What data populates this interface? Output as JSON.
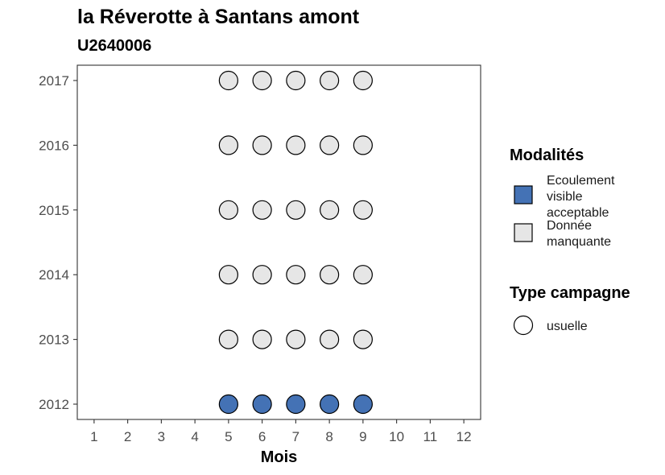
{
  "colors": {
    "ecoulement": "#4472b5",
    "donnee_manquante": "#e6e6e6",
    "usuelle": "#ffffff",
    "stroke": "#000000"
  },
  "chart_data": {
    "type": "scatter",
    "title": "la Réverotte à Santans amont",
    "subtitle": "U2640006",
    "xlabel": "Mois",
    "ylabel": "",
    "xlim": [
      0.5,
      12.5
    ],
    "x_ticks": [
      1,
      2,
      3,
      4,
      5,
      6,
      7,
      8,
      9,
      10,
      11,
      12
    ],
    "y_categories": [
      "2012",
      "2013",
      "2014",
      "2015",
      "2016",
      "2017"
    ],
    "grid": false,
    "legend_position": "right",
    "legends": [
      {
        "title": "Modalités",
        "entries": [
          {
            "key": "ecoulement",
            "lines": [
              "Ecoulement",
              "visible",
              "acceptable"
            ]
          },
          {
            "key": "donnee_manquante",
            "lines": [
              "Donnée",
              "manquante"
            ]
          }
        ]
      },
      {
        "title": "Type campagne",
        "entries": [
          {
            "key": "usuelle",
            "lines": [
              "usuelle"
            ]
          }
        ]
      }
    ],
    "points": [
      {
        "year": "2012",
        "month": 5,
        "modalite": "ecoulement"
      },
      {
        "year": "2012",
        "month": 6,
        "modalite": "ecoulement"
      },
      {
        "year": "2012",
        "month": 7,
        "modalite": "ecoulement"
      },
      {
        "year": "2012",
        "month": 8,
        "modalite": "ecoulement"
      },
      {
        "year": "2012",
        "month": 9,
        "modalite": "ecoulement"
      },
      {
        "year": "2013",
        "month": 5,
        "modalite": "donnee_manquante"
      },
      {
        "year": "2013",
        "month": 6,
        "modalite": "donnee_manquante"
      },
      {
        "year": "2013",
        "month": 7,
        "modalite": "donnee_manquante"
      },
      {
        "year": "2013",
        "month": 8,
        "modalite": "donnee_manquante"
      },
      {
        "year": "2013",
        "month": 9,
        "modalite": "donnee_manquante"
      },
      {
        "year": "2014",
        "month": 5,
        "modalite": "donnee_manquante"
      },
      {
        "year": "2014",
        "month": 6,
        "modalite": "donnee_manquante"
      },
      {
        "year": "2014",
        "month": 7,
        "modalite": "donnee_manquante"
      },
      {
        "year": "2014",
        "month": 8,
        "modalite": "donnee_manquante"
      },
      {
        "year": "2014",
        "month": 9,
        "modalite": "donnee_manquante"
      },
      {
        "year": "2015",
        "month": 5,
        "modalite": "donnee_manquante"
      },
      {
        "year": "2015",
        "month": 6,
        "modalite": "donnee_manquante"
      },
      {
        "year": "2015",
        "month": 7,
        "modalite": "donnee_manquante"
      },
      {
        "year": "2015",
        "month": 8,
        "modalite": "donnee_manquante"
      },
      {
        "year": "2015",
        "month": 9,
        "modalite": "donnee_manquante"
      },
      {
        "year": "2016",
        "month": 5,
        "modalite": "donnee_manquante"
      },
      {
        "year": "2016",
        "month": 6,
        "modalite": "donnee_manquante"
      },
      {
        "year": "2016",
        "month": 7,
        "modalite": "donnee_manquante"
      },
      {
        "year": "2016",
        "month": 8,
        "modalite": "donnee_manquante"
      },
      {
        "year": "2016",
        "month": 9,
        "modalite": "donnee_manquante"
      },
      {
        "year": "2017",
        "month": 5,
        "modalite": "donnee_manquante"
      },
      {
        "year": "2017",
        "month": 6,
        "modalite": "donnee_manquante"
      },
      {
        "year": "2017",
        "month": 7,
        "modalite": "donnee_manquante"
      },
      {
        "year": "2017",
        "month": 8,
        "modalite": "donnee_manquante"
      },
      {
        "year": "2017",
        "month": 9,
        "modalite": "donnee_manquante"
      }
    ]
  }
}
